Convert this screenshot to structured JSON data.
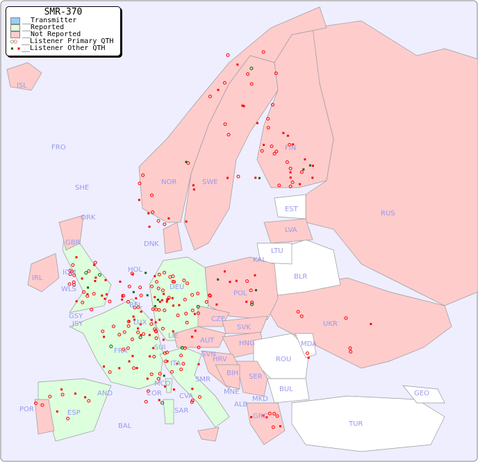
{
  "legend": {
    "title": "SMR-370",
    "items": [
      {
        "label": "__Transmitter",
        "color": "#99ccff"
      },
      {
        "label": "__Reported",
        "color": "#ddffdd"
      },
      {
        "label": "__Not Reported",
        "color": "#ffcccc"
      },
      {
        "label": "__Listener Primary QTH",
        "marker": "circle"
      },
      {
        "label": "__Listener Other QTH",
        "marker": "square"
      }
    ]
  },
  "colors": {
    "sea": "#eeeeff",
    "reported": "#ddffdd",
    "not_reported": "#ffcccc",
    "no_data": "#ffffff",
    "marker_red": "#ff0000",
    "marker_green": "#006600",
    "label": "#9999ee"
  },
  "countries": [
    "ISL",
    "FRO",
    "SHE",
    "ORK",
    "NOR",
    "SWE",
    "FIN",
    "EST",
    "RUS",
    "LVA",
    "LTU",
    "KAL",
    "BLR",
    "DNK",
    "IRL",
    "GBR",
    "IOM",
    "WLS",
    "HOL",
    "BEL",
    "DEU",
    "POL",
    "UKR",
    "GSY",
    "JSY",
    "LUX",
    "CZE",
    "SVK",
    "LIE",
    "AUT",
    "HNG",
    "MDA",
    "FRA",
    "SUI",
    "SVN",
    "HRV",
    "ROU",
    "ITA",
    "BIH",
    "SER",
    "MCO",
    "COR",
    "SMR",
    "CVA",
    "BUL",
    "MNE",
    "GEO",
    "AND",
    "MKD",
    "ALB",
    "POR",
    "ESP",
    "SAR",
    "GRC",
    "TUR",
    "BAL"
  ]
}
